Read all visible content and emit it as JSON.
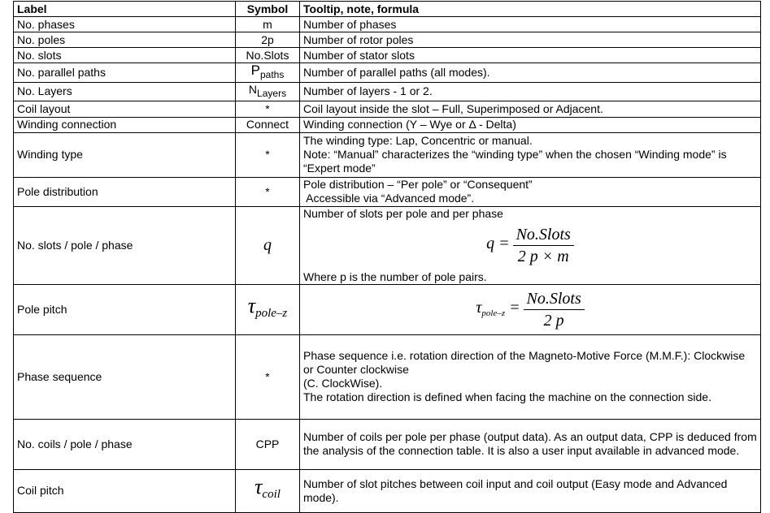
{
  "headers": [
    "Label",
    "Symbol",
    "Tooltip, note, formula"
  ],
  "rows": [
    {
      "label": "No. phases",
      "symbol": "m",
      "note": "Number of phases"
    },
    {
      "label": "No. poles",
      "symbol": "2p",
      "note": "Number of rotor poles"
    },
    {
      "label": "No. slots",
      "symbol": "No.Slots",
      "note": "Number of stator slots"
    },
    {
      "label": "No. parallel paths",
      "symbol": "P",
      "symbol_sub": "paths",
      "note": "Number of parallel paths (all modes)."
    },
    {
      "label": "No. Layers",
      "symbol": "N",
      "symbol_sub": "Layers",
      "note": "Number of layers - 1 or 2."
    },
    {
      "label": "Coil layout",
      "symbol": "*",
      "note": "Coil layout inside the slot – Full, Superimposed or Adjacent."
    },
    {
      "label": "Winding connection",
      "symbol": "Connect",
      "note": "Winding connection (Y – Wye or Δ - Delta)"
    },
    {
      "label": "Winding type",
      "symbol": "*",
      "note": "The winding type: Lap, Concentric or manual.",
      "note2": "Note: “Manual” characterizes the “winding type” when the chosen “Winding mode” is “Expert mode”"
    },
    {
      "label": "Pole distribution",
      "symbol": "*",
      "note": "Pole distribution – “Per pole” or “Consequent”",
      "note2": " Accessible via “Advanced mode”."
    },
    {
      "label": "No. slots / pole / phase",
      "symbol": "q",
      "note": "Number of slots per pole and per phase",
      "formula": {
        "lhs": "q =",
        "num": "No.Slots",
        "den": "2 p × m"
      },
      "note2": "Where p is the number of pole pairs."
    },
    {
      "label": "Pole pitch",
      "symbol": "τ",
      "symbol_sub": "pole–z",
      "formula": {
        "lhs": "τ",
        "lhs_sub": "pole–z",
        "eq": " =",
        "num": "No.Slots",
        "den": "2 p"
      }
    },
    {
      "label": "Phase sequence",
      "symbol": "*",
      "note": "Phase sequence i.e. rotation direction of the Magneto-Motive Force (M.M.F.): Clockwise or Counter clockwise",
      "note2": "(C. ClockWise).",
      "note3": "The rotation direction is defined when facing the machine on the connection side."
    },
    {
      "label": "No. coils / pole / phase",
      "symbol": "CPP",
      "note": "Number of coils per pole per phase (output data). As an output data, CPP is deduced from the analysis of the connection table. It is also a user input available in advanced mode."
    },
    {
      "label": "Coil pitch",
      "symbol": "τ",
      "symbol_sub": "coil",
      "note": "Number of slot pitches between coil input and coil output (Easy mode and Advanced mode)."
    }
  ]
}
